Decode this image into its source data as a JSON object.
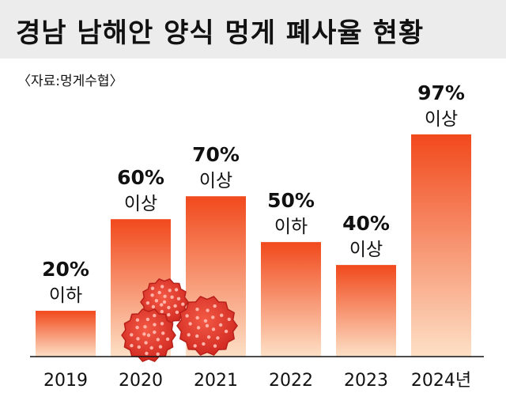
{
  "title": "경남 남해안 양식 멍게 폐사율 현황",
  "source": "〈자료:멍게수협〉",
  "colors": {
    "bar_top": "#f1491c",
    "bar_bottom": "#fde0c6",
    "roe": "#e8372f",
    "roe_dot": "#ffb3a8"
  },
  "chart_data": {
    "type": "bar",
    "title": "경남 남해안 양식 멍게 폐사율 현황",
    "xlabel": "",
    "ylabel": "",
    "ylim": [
      0,
      100
    ],
    "grid": false,
    "categories": [
      "2019",
      "2020",
      "2021",
      "2022",
      "2023",
      "2024년"
    ],
    "values": [
      20,
      60,
      70,
      50,
      40,
      97
    ],
    "value_labels": [
      "20%",
      "60%",
      "70%",
      "50%",
      "40%",
      "97%"
    ],
    "qualifiers": [
      "이하",
      "이상",
      "이상",
      "이하",
      "이상",
      "이상"
    ]
  }
}
